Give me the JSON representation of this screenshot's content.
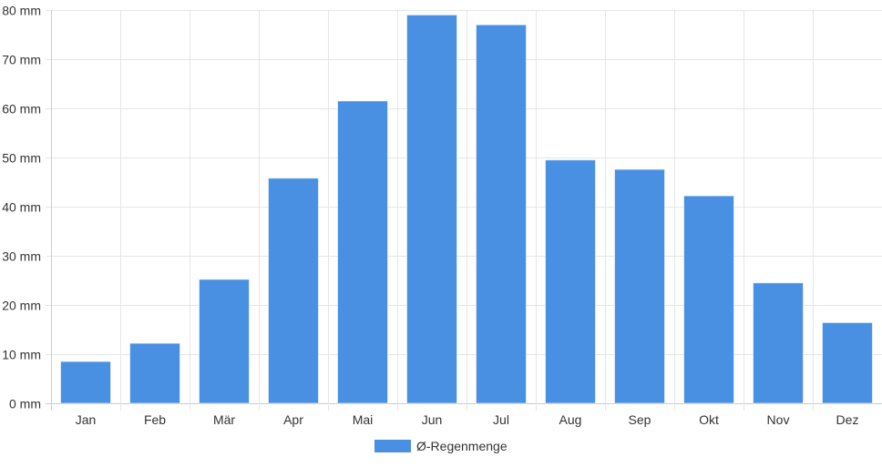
{
  "chart_data": {
    "type": "bar",
    "categories": [
      "Jan",
      "Feb",
      "Mär",
      "Apr",
      "Mai",
      "Jun",
      "Jul",
      "Aug",
      "Sep",
      "Okt",
      "Nov",
      "Dez"
    ],
    "series": [
      {
        "name": "Ø-Regenmenge",
        "values": [
          8.5,
          12.2,
          25.2,
          45.8,
          61.5,
          79.0,
          77.0,
          49.5,
          47.6,
          42.2,
          24.5,
          16.4
        ],
        "color": "#4a90e2"
      }
    ],
    "ylim": [
      0,
      80
    ],
    "yticks": [
      0,
      10,
      20,
      30,
      40,
      50,
      60,
      70,
      80
    ],
    "yunit": "mm",
    "grid": true,
    "legend": "bottom-center",
    "gridColor": "#e6e6e6",
    "axisColor": "#cccccc"
  }
}
